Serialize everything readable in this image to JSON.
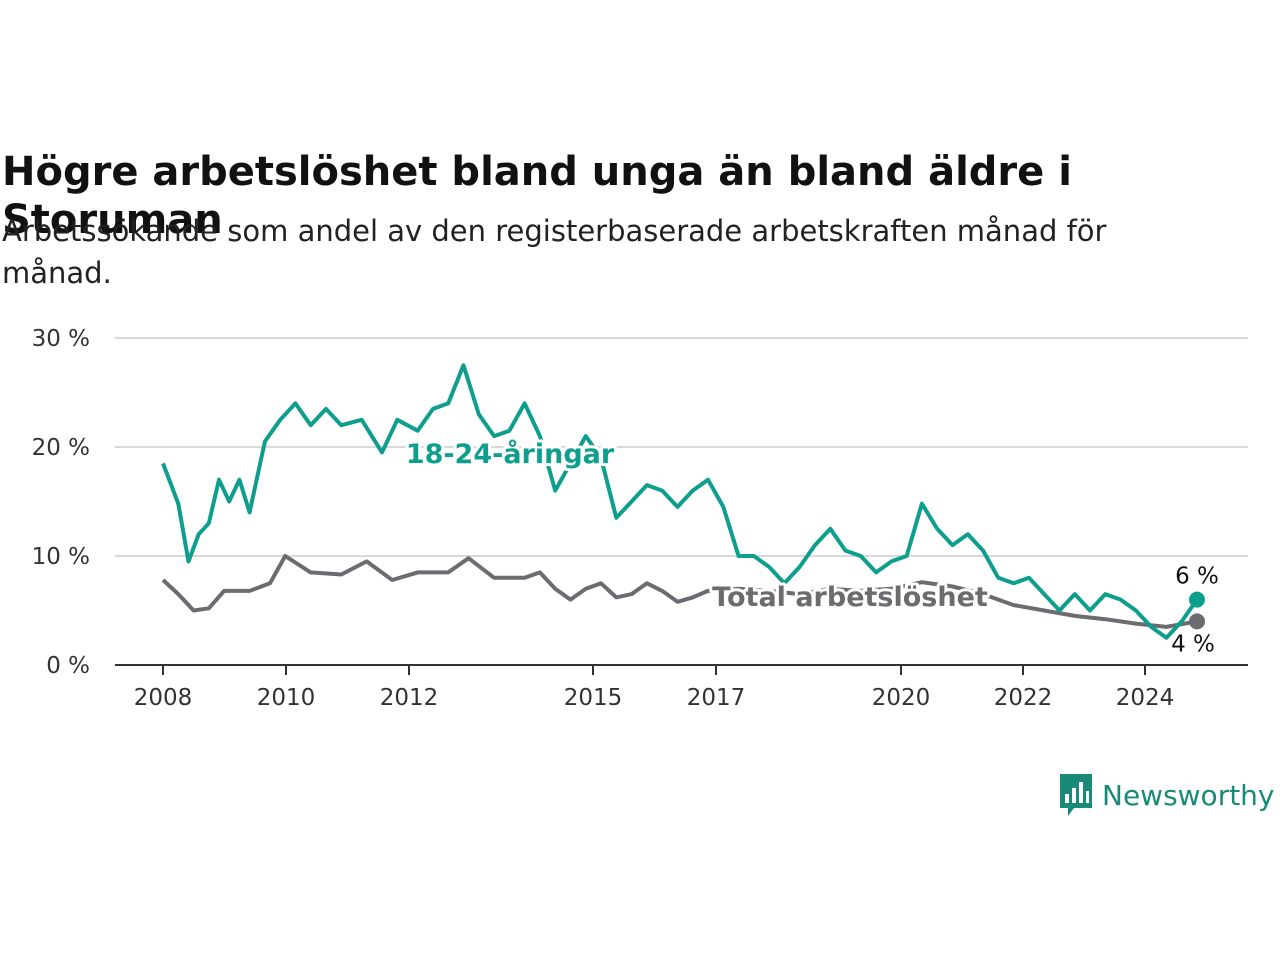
{
  "header": {
    "title": "Högre arbetslöshet bland unga än bland äldre i Storuman",
    "subtitle": "Arbetssökande som andel av den registerbaserade arbetskraften månad för månad."
  },
  "brand": {
    "name": "Newsworthy",
    "icon": "newsworthy-logo-icon",
    "color": "#1a8a78"
  },
  "chart_data": {
    "type": "line",
    "x_ticks": [
      "2008",
      "2010",
      "2012",
      "2015",
      "2017",
      "2020",
      "2022",
      "2024"
    ],
    "y_ticks": [
      "0 %",
      "10 %",
      "20 %",
      "30 %"
    ],
    "ylim": [
      0,
      30
    ],
    "xlim": [
      "2008-01",
      "2024-12"
    ],
    "grid": "horizontal",
    "legend": "inline labels",
    "end_labels": {
      "youth": "6 %",
      "total": "4 %"
    },
    "series": [
      {
        "name": "18-24-åringar",
        "color": "#0e9e8e",
        "points": [
          [
            "2008-01",
            18.5
          ],
          [
            "2008-04",
            14.8
          ],
          [
            "2008-06",
            9.5
          ],
          [
            "2008-08",
            12
          ],
          [
            "2008-10",
            13
          ],
          [
            "2008-12",
            17
          ],
          [
            "2009-02",
            15
          ],
          [
            "2009-04",
            17
          ],
          [
            "2009-06",
            14
          ],
          [
            "2009-09",
            20.5
          ],
          [
            "2009-12",
            22.5
          ],
          [
            "2010-03",
            24
          ],
          [
            "2010-06",
            22
          ],
          [
            "2010-09",
            23.5
          ],
          [
            "2010-12",
            22
          ],
          [
            "2011-04",
            22.5
          ],
          [
            "2011-08",
            19.5
          ],
          [
            "2011-11",
            22.5
          ],
          [
            "2012-03",
            21.5
          ],
          [
            "2012-06",
            23.5
          ],
          [
            "2012-09",
            24
          ],
          [
            "2012-12",
            27.5
          ],
          [
            "2013-03",
            23
          ],
          [
            "2013-06",
            21
          ],
          [
            "2013-09",
            21.5
          ],
          [
            "2013-12",
            24
          ],
          [
            "2014-03",
            21
          ],
          [
            "2014-06",
            16
          ],
          [
            "2014-09",
            18.5
          ],
          [
            "2014-12",
            21
          ],
          [
            "2015-03",
            19
          ],
          [
            "2015-06",
            13.5
          ],
          [
            "2015-09",
            15
          ],
          [
            "2015-12",
            16.5
          ],
          [
            "2016-03",
            16
          ],
          [
            "2016-06",
            14.5
          ],
          [
            "2016-09",
            16
          ],
          [
            "2016-12",
            17
          ],
          [
            "2017-03",
            14.5
          ],
          [
            "2017-06",
            10
          ],
          [
            "2017-09",
            10
          ],
          [
            "2017-12",
            9
          ],
          [
            "2018-03",
            7.5
          ],
          [
            "2018-06",
            9
          ],
          [
            "2018-09",
            11
          ],
          [
            "2018-12",
            12.5
          ],
          [
            "2019-03",
            10.5
          ],
          [
            "2019-06",
            10
          ],
          [
            "2019-09",
            8.5
          ],
          [
            "2019-12",
            9.5
          ],
          [
            "2020-03",
            10
          ],
          [
            "2020-06",
            14.8
          ],
          [
            "2020-09",
            12.5
          ],
          [
            "2020-12",
            11
          ],
          [
            "2021-03",
            12
          ],
          [
            "2021-06",
            10.5
          ],
          [
            "2021-09",
            8
          ],
          [
            "2021-12",
            7.5
          ],
          [
            "2022-03",
            8
          ],
          [
            "2022-06",
            6.5
          ],
          [
            "2022-09",
            5
          ],
          [
            "2022-12",
            6.5
          ],
          [
            "2023-03",
            5
          ],
          [
            "2023-06",
            6.5
          ],
          [
            "2023-09",
            6
          ],
          [
            "2023-12",
            5
          ],
          [
            "2024-03",
            3.5
          ],
          [
            "2024-06",
            2.5
          ],
          [
            "2024-09",
            4
          ],
          [
            "2024-12",
            6
          ]
        ]
      },
      {
        "name": "Total arbetslöshet",
        "color": "#6b6b70",
        "points": [
          [
            "2008-01",
            7.8
          ],
          [
            "2008-04",
            6.5
          ],
          [
            "2008-07",
            5
          ],
          [
            "2008-10",
            5.2
          ],
          [
            "2009-01",
            6.8
          ],
          [
            "2009-06",
            6.8
          ],
          [
            "2009-10",
            7.5
          ],
          [
            "2010-01",
            10
          ],
          [
            "2010-06",
            8.5
          ],
          [
            "2010-12",
            8.3
          ],
          [
            "2011-05",
            9.5
          ],
          [
            "2011-10",
            7.8
          ],
          [
            "2012-03",
            8.5
          ],
          [
            "2012-09",
            8.5
          ],
          [
            "2013-01",
            9.8
          ],
          [
            "2013-06",
            8
          ],
          [
            "2013-12",
            8
          ],
          [
            "2014-03",
            8.5
          ],
          [
            "2014-06",
            7
          ],
          [
            "2014-09",
            6
          ],
          [
            "2014-12",
            7
          ],
          [
            "2015-03",
            7.5
          ],
          [
            "2015-06",
            6.2
          ],
          [
            "2015-09",
            6.5
          ],
          [
            "2015-12",
            7.5
          ],
          [
            "2016-03",
            6.8
          ],
          [
            "2016-06",
            5.8
          ],
          [
            "2016-09",
            6.2
          ],
          [
            "2016-12",
            6.8
          ],
          [
            "2017-06",
            7
          ],
          [
            "2017-12",
            6.8
          ],
          [
            "2018-06",
            6.5
          ],
          [
            "2018-12",
            7
          ],
          [
            "2019-06",
            6.8
          ],
          [
            "2019-12",
            7
          ],
          [
            "2020-06",
            7.6
          ],
          [
            "2020-12",
            7.2
          ],
          [
            "2021-06",
            6.5
          ],
          [
            "2021-12",
            5.5
          ],
          [
            "2022-06",
            5
          ],
          [
            "2022-12",
            4.5
          ],
          [
            "2023-06",
            4.2
          ],
          [
            "2023-12",
            3.8
          ],
          [
            "2024-06",
            3.5
          ],
          [
            "2024-12",
            4
          ]
        ]
      }
    ]
  }
}
